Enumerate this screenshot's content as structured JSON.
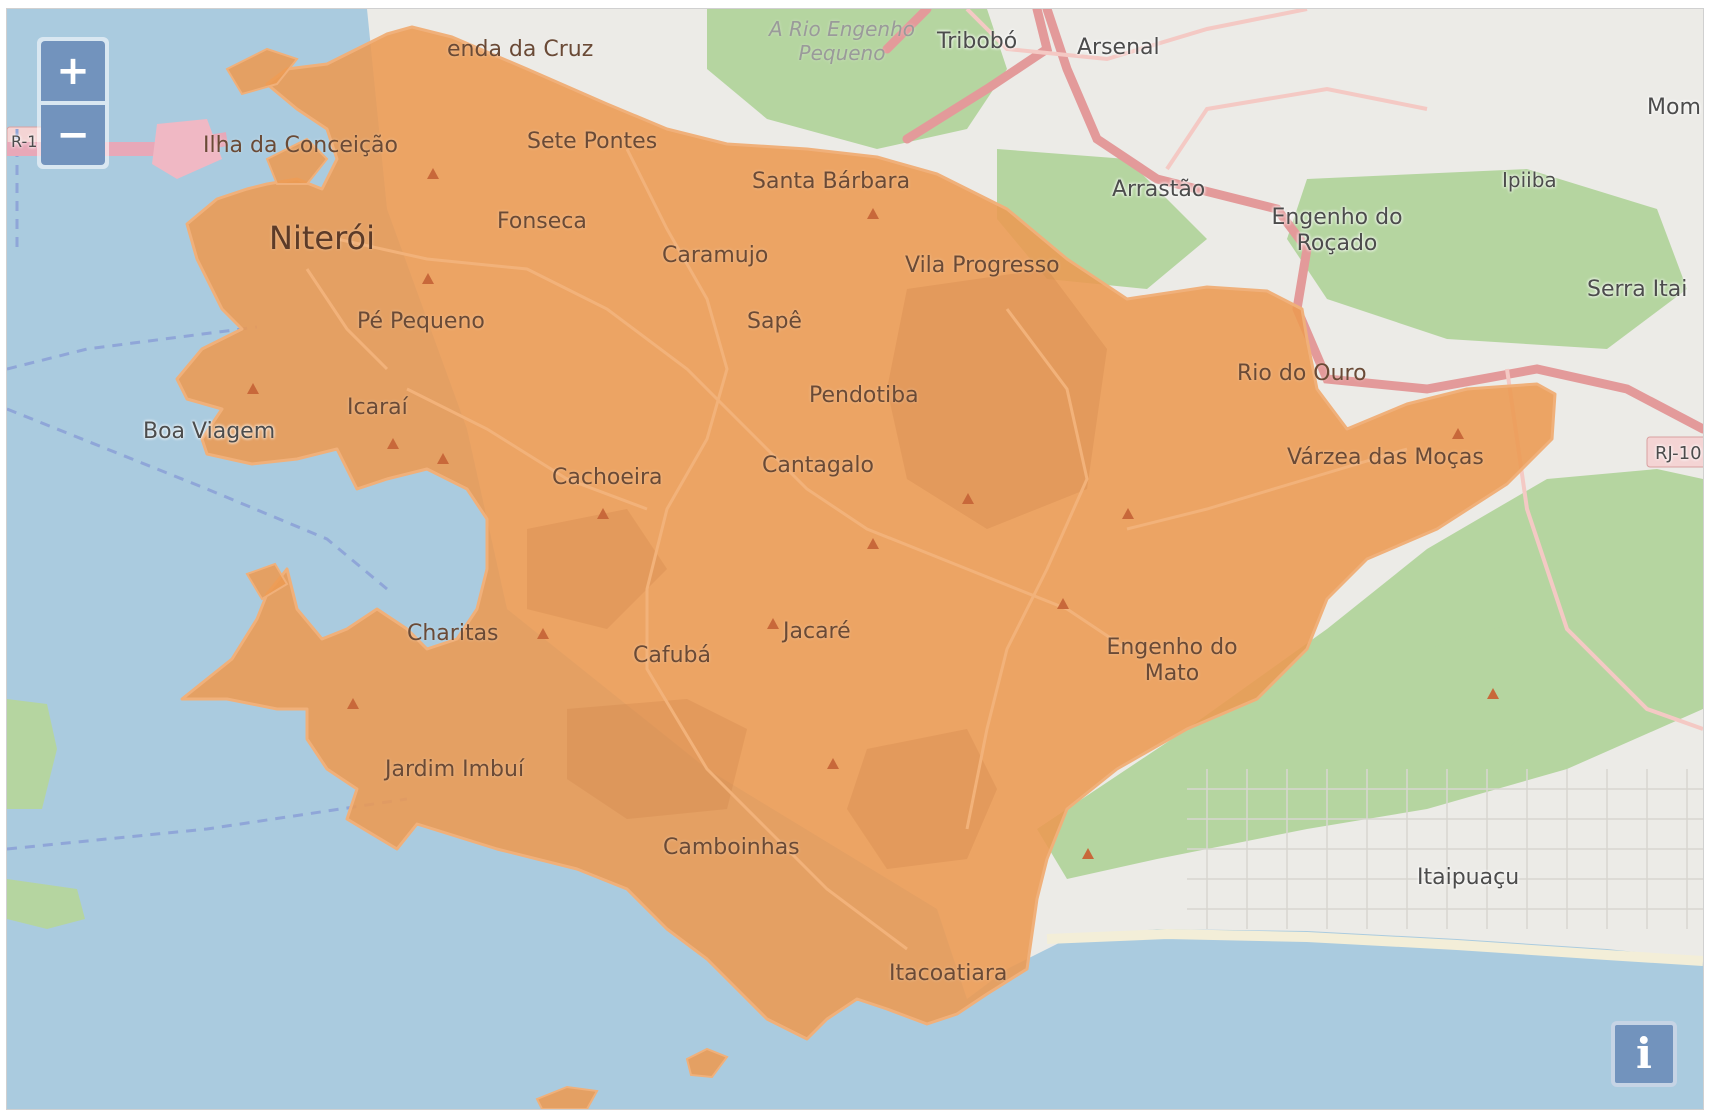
{
  "controls": {
    "zoom_in_label": "+",
    "zoom_out_label": "−",
    "info_label": "i"
  },
  "labels": {
    "venda_da_cruz": "enda da Cruz",
    "rio_engenho_pequeno": "A Rio Engenho Pequeno",
    "tribobo": "Tribobó",
    "arsenal": "Arsenal",
    "mom": "Mom",
    "rj_left": "R-1",
    "ilha_conceicao": "Ilha da Conceição",
    "sete_pontes": "Sete Pontes",
    "santa_barbara": "Santa Bárbara",
    "arrastao": "Arrastão",
    "engenho_rocado": "Engenho do Roçado",
    "ipiiba": "Ipiiba",
    "niteroi": "Niterói",
    "fonseca": "Fonseca",
    "caramujo": "Caramujo",
    "vila_progresso": "Vila Progresso",
    "serra_itai": "Serra Itai",
    "pe_pequeno": "Pé Pequeno",
    "sape": "Sapê",
    "rio_do_ouro": "Rio do Ouro",
    "pendotiba": "Pendotiba",
    "icarai": "Icaraí",
    "boa_viagem": "Boa Viagem",
    "rj_right": "RJ-10",
    "varzea": "Várzea das Moças",
    "cachoeira": "Cachoeira",
    "cantagalo": "Cantagalo",
    "charitas": "Charitas",
    "cafuba": "Cafubá",
    "jacare": "Jacaré",
    "engenho_mato": "Engenho do Mato",
    "jardim_imbui": "Jardim Imbuí",
    "camboinhas": "Camboinhas",
    "itaipuacu": "Itaipuaçu",
    "itacoatiara": "Itacoatiara"
  },
  "colors": {
    "water": "#aacbdf",
    "land": "#ecebe7",
    "vegetation": "#b5d5a0",
    "highlight_fill": "#ec9a52",
    "highlight_border": "#f0b07a",
    "control_blue": "#7293bd",
    "road_primary": "#e39a9a",
    "label_text": "#6a4a36"
  }
}
